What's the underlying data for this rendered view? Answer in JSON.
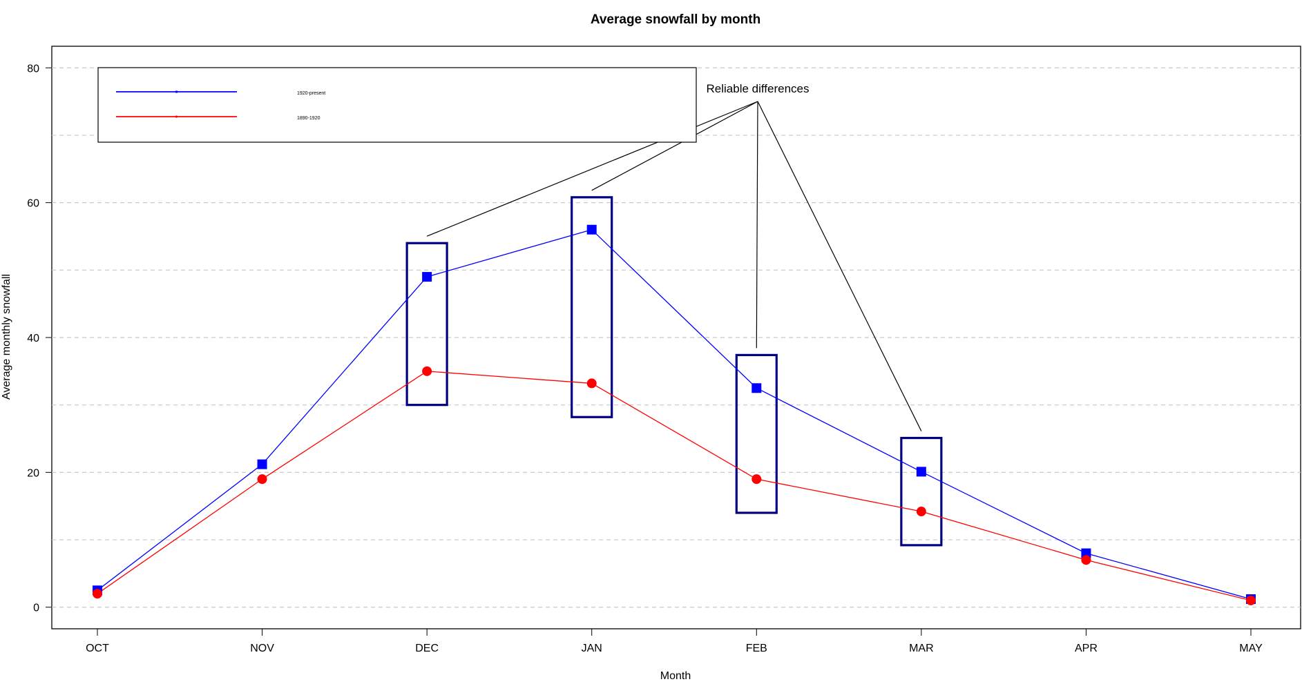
{
  "chart_data": {
    "type": "line",
    "title": "Average snowfall by month",
    "xlabel": "Month",
    "ylabel": "Average monthly snowfall",
    "categories": [
      "OCT",
      "NOV",
      "DEC",
      "JAN",
      "FEB",
      "MAR",
      "APR",
      "MAY"
    ],
    "ylim": [
      -3.2,
      83.2
    ],
    "yticks": [
      0,
      20,
      40,
      60,
      80
    ],
    "grid": true,
    "grid_style": "dashed horizontal",
    "legend_position": "top-left",
    "series": [
      {
        "name": "1920-present",
        "color": "#0000ff",
        "marker": "square",
        "values": [
          2.5,
          21.2,
          49.0,
          56.0,
          32.5,
          20.1,
          8.0,
          1.2
        ]
      },
      {
        "name": "1890-1920",
        "color": "#ff0000",
        "marker": "circle",
        "values": [
          2.0,
          19.0,
          35.0,
          33.2,
          19.0,
          14.2,
          7.0,
          1.0
        ]
      }
    ],
    "highlight_boxes": {
      "color": "#000080",
      "boxes": [
        {
          "category": "DEC",
          "ymin": 30.0,
          "ymax": 54.0
        },
        {
          "category": "JAN",
          "ymin": 28.2,
          "ymax": 60.8
        },
        {
          "category": "FEB",
          "ymin": 14.0,
          "ymax": 37.4
        },
        {
          "category": "MAR",
          "ymin": 9.2,
          "ymax": 25.1
        }
      ]
    },
    "annotation": {
      "text": "Reliable differences",
      "targets": [
        "DEC",
        "JAN",
        "FEB",
        "MAR"
      ]
    }
  }
}
